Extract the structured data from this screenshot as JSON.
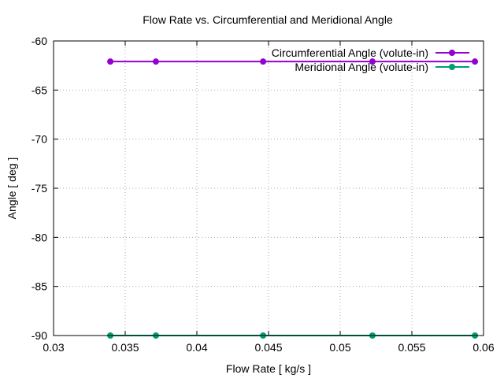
{
  "chart_data": {
    "type": "line",
    "title": "Flow Rate vs. Circumferential and Meridional Angle",
    "xlabel": "Flow Rate [ kg/s ]",
    "ylabel": "Angle [ deg ]",
    "xlim": [
      0.03,
      0.06
    ],
    "ylim": [
      -90,
      -60
    ],
    "xticks": [
      "0.03",
      "0.035",
      "0.04",
      "0.045",
      "0.05",
      "0.055",
      "0.06"
    ],
    "yticks": [
      "-60",
      "-65",
      "-70",
      "-75",
      "-80",
      "-85",
      "-90"
    ],
    "grid": true,
    "legend_placement": "top-right",
    "x": [
      0.03396,
      0.03714,
      0.04462,
      0.05225,
      0.0594
    ],
    "series": [
      {
        "name": "Circumferential Angle (volute-in)",
        "color": "#9400d3",
        "values": [
          -62.1,
          -62.1,
          -62.1,
          -62.1,
          -62.1
        ]
      },
      {
        "name": "Meridional Angle (volute-in)",
        "color": "#009e73",
        "values": [
          -90,
          -90,
          -90,
          -90,
          -90
        ]
      }
    ]
  }
}
